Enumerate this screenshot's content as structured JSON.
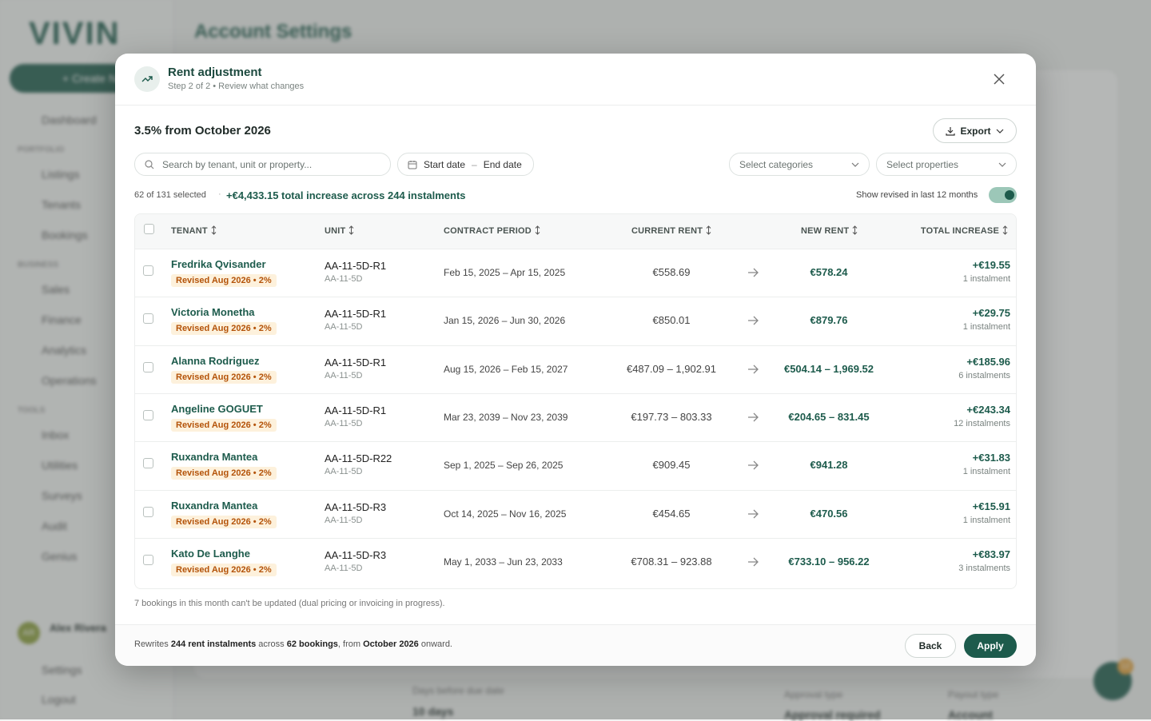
{
  "background": {
    "logo": "VIVIN",
    "page_title": "Account Settings",
    "create_button": "+ Create N",
    "nav": [
      "Dashboard",
      "PORTFOLIO",
      "Listings",
      "Tenants",
      "Bookings",
      "BUSINESS",
      "Sales",
      "Finance",
      "Analytics",
      "Operations",
      "TOOLS",
      "Inbox",
      "Utilities",
      "Surveys",
      "Audit",
      "Genius"
    ],
    "user_initials": "AR",
    "user_name": "Alex Rivera",
    "settings": "Settings",
    "logout": "Logout",
    "card_label": "Days before due date",
    "card_value": "10 days",
    "approval_label": "Approval type",
    "approval_value": "Approval required",
    "payout_label": "Payout type",
    "payout_value": "Account",
    "chat_badge": "12"
  },
  "modal": {
    "title": "Rent adjustment",
    "subtitle": "Step 2 of 2 • Review what changes",
    "heading": "3.5% from October 2026",
    "export": "Export",
    "search_placeholder": "Search by tenant, unit or property...",
    "start_date": "Start date",
    "date_separator": "–",
    "end_date": "End date",
    "categories_placeholder": "Select categories",
    "properties_placeholder": "Select properties",
    "selection_count": "62 of 131 selected",
    "separator": "·",
    "summary": "+€4,433.15 total increase across 244 instalments",
    "toggle_label": "Show revised in last 12 months",
    "columns": [
      "TENANT",
      "UNIT",
      "CONTRACT PERIOD",
      "CURRENT RENT",
      "NEW RENT",
      "TOTAL INCREASE"
    ],
    "rows": [
      {
        "tenant": "Fredrika Qvisander",
        "badge": "Revised Aug 2026 • 2%",
        "unit": "AA-11-5D-R1",
        "property": "AA-11-5D",
        "period": "Feb 15, 2025 – Apr 15, 2025",
        "current": "€558.69",
        "new": "€578.24",
        "increase": "+€19.55",
        "instalments": "1 instalment"
      },
      {
        "tenant": "Victoria Monetha",
        "badge": "Revised Aug 2026 • 2%",
        "unit": "AA-11-5D-R1",
        "property": "AA-11-5D",
        "period": "Jan 15, 2026 – Jun 30, 2026",
        "current": "€850.01",
        "new": "€879.76",
        "increase": "+€29.75",
        "instalments": "1 instalment"
      },
      {
        "tenant": "Alanna Rodriguez",
        "badge": "Revised Aug 2026 • 2%",
        "unit": "AA-11-5D-R1",
        "property": "AA-11-5D",
        "period": "Aug 15, 2026 – Feb 15, 2027",
        "current": "€487.09 – 1,902.91",
        "new": "€504.14 – 1,969.52",
        "increase": "+€185.96",
        "instalments": "6 instalments"
      },
      {
        "tenant": "Angeline GOGUET",
        "badge": "Revised Aug 2026 • 2%",
        "unit": "AA-11-5D-R1",
        "property": "AA-11-5D",
        "period": "Mar 23, 2039 – Nov 23, 2039",
        "current": "€197.73 – 803.33",
        "new": "€204.65 – 831.45",
        "increase": "+€243.34",
        "instalments": "12 instalments"
      },
      {
        "tenant": "Ruxandra Mantea",
        "badge": "Revised Aug 2026 • 2%",
        "unit": "AA-11-5D-R22",
        "property": "AA-11-5D",
        "period": "Sep 1, 2025 – Sep 26, 2025",
        "current": "€909.45",
        "new": "€941.28",
        "increase": "+€31.83",
        "instalments": "1 instalment"
      },
      {
        "tenant": "Ruxandra Mantea",
        "badge": "Revised Aug 2026 • 2%",
        "unit": "AA-11-5D-R3",
        "property": "AA-11-5D",
        "period": "Oct 14, 2025 – Nov 16, 2025",
        "current": "€454.65",
        "new": "€470.56",
        "increase": "+€15.91",
        "instalments": "1 instalment"
      },
      {
        "tenant": "Kato De Langhe",
        "badge": "Revised Aug 2026 • 2%",
        "unit": "AA-11-5D-R3",
        "property": "AA-11-5D",
        "period": "May 1, 2033 – Jun 23, 2033",
        "current": "€708.31 – 923.88",
        "new": "€733.10 – 956.22",
        "increase": "+€83.97",
        "instalments": "3 instalments"
      }
    ],
    "note": "7 bookings in this month can't be updated (dual pricing or invoicing in progress).",
    "footer": [
      "Rewrites ",
      "244 rent instalments",
      " across ",
      "62 bookings",
      ", from ",
      "October 2026",
      " onward."
    ],
    "back": "Back",
    "apply": "Apply"
  }
}
